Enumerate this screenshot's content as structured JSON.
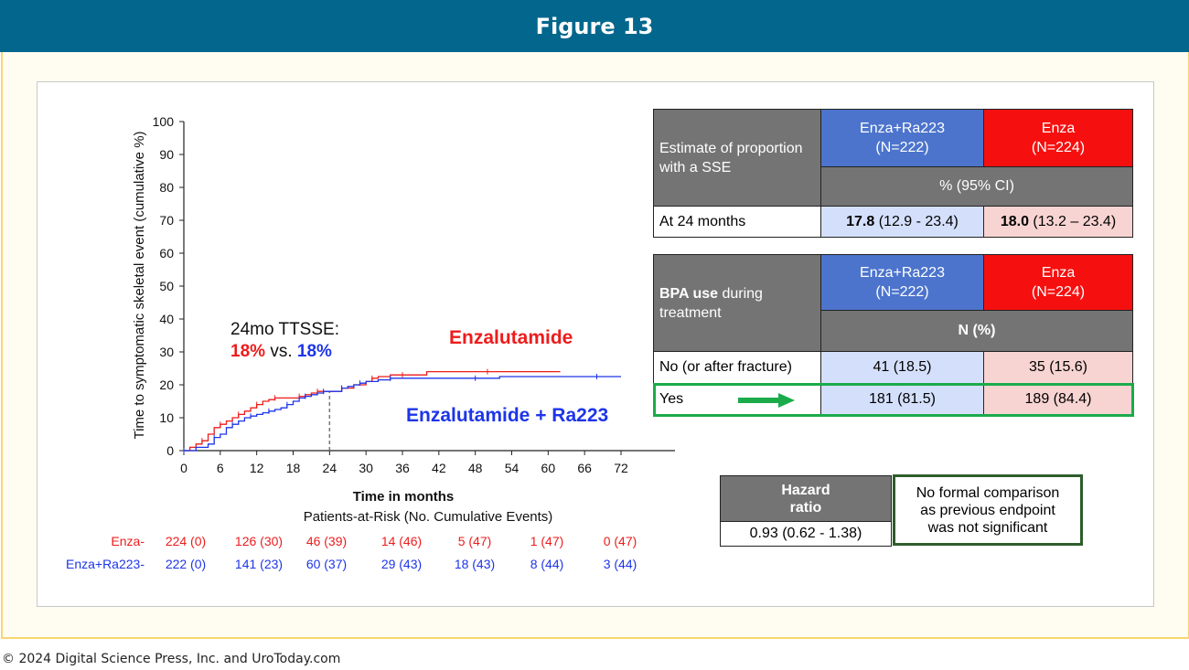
{
  "header": {
    "title": "Figure 13"
  },
  "footer": {
    "copyright": "© 2024 Digital Science Press, Inc. and UroToday.com"
  },
  "chart_data": {
    "type": "line",
    "xlabel": "Time in months",
    "ylabel": "Time to symptomatic skeletal event (cumulative %)",
    "xticks": [
      0,
      6,
      12,
      18,
      24,
      30,
      36,
      42,
      48,
      54,
      60,
      66,
      72
    ],
    "yticks": [
      0,
      10,
      20,
      30,
      40,
      50,
      60,
      70,
      80,
      90,
      100
    ],
    "xlim": [
      0,
      72
    ],
    "ylim": [
      0,
      100
    ],
    "reference_line_x": 24,
    "annotation": {
      "line1": "24mo TTSSE:",
      "red_pct": "18%",
      "vs": "vs.",
      "blue_pct": "18%"
    },
    "series": [
      {
        "name": "Enzalutamide",
        "color": "#ee1c1c",
        "x": [
          0,
          1,
          2,
          3,
          4,
          5,
          6,
          7,
          8,
          9,
          10,
          11,
          12,
          13,
          14,
          15,
          16,
          18,
          19,
          20,
          21,
          22,
          23,
          24,
          26,
          28,
          30,
          31,
          32,
          34,
          36,
          40,
          44,
          50,
          56,
          62
        ],
        "y": [
          0,
          1,
          2,
          3,
          5,
          7,
          8,
          9,
          10,
          11,
          12,
          13,
          14,
          15,
          15.5,
          16,
          16,
          16,
          16.5,
          17,
          17.5,
          18,
          18,
          18,
          19,
          20,
          21,
          22,
          22.5,
          23,
          23,
          24,
          24,
          24,
          24,
          24
        ]
      },
      {
        "name": "Enzalutamide + Ra223",
        "color": "#1d35e8",
        "x": [
          0,
          2,
          4,
          5,
          6,
          7,
          8,
          9,
          10,
          11,
          12,
          13,
          14,
          15,
          16,
          17,
          18,
          19,
          20,
          21,
          22,
          23,
          24,
          25,
          26,
          27,
          28,
          29,
          30,
          32,
          34,
          36,
          42,
          48,
          52,
          60,
          68,
          72
        ],
        "y": [
          0,
          1,
          2,
          4,
          5,
          7,
          8,
          9,
          10,
          10.5,
          11,
          11.5,
          12,
          12.5,
          13,
          14,
          15,
          16,
          16.5,
          17,
          17.5,
          18,
          18,
          18,
          19,
          19.5,
          20,
          20.5,
          21,
          21.5,
          22,
          22,
          22,
          22,
          22.5,
          22.5,
          22.5,
          22.5
        ]
      }
    ],
    "series_labels": {
      "red": "Enzalutamide",
      "blue": "Enzalutamide + Ra223"
    },
    "risk_table": {
      "title": "Patients-at-Risk (No. Cumulative Events)",
      "rows": [
        {
          "label": "Enza-",
          "values": [
            "224 (0)",
            "126 (30)",
            "46 (39)",
            "14 (46)",
            "5 (47)",
            "1 (47)",
            "0 (47)"
          ]
        },
        {
          "label": "Enza+Ra223-",
          "values": [
            "222 (0)",
            "141 (23)",
            "60 (37)",
            "29 (43)",
            "18 (43)",
            "8 (44)",
            "3 (44)"
          ]
        }
      ]
    }
  },
  "table1": {
    "row_header": "Estimate of proportion with a SSE",
    "col1": {
      "line1": "Enza+Ra223",
      "line2": "(N=222)"
    },
    "col2": {
      "line1": "Enza",
      "line2": "(N=224)"
    },
    "subheader": "% (95% CI)",
    "row_label": "At 24 months",
    "v1_bold": "17.8",
    "v1_ci": " (12.9 - 23.4)",
    "v2_bold": "18.0",
    "v2_ci": " (13.2 – 23.4)"
  },
  "table2": {
    "row_header_bold": "BPA use",
    "row_header_rest": " during treatment",
    "col1": {
      "line1": "Enza+Ra223",
      "line2": "(N=222)"
    },
    "col2": {
      "line1": "Enza",
      "line2": "(N=224)"
    },
    "subheader": "N (%)",
    "rows": [
      {
        "label": "No (or after fracture)",
        "v1": "41 (18.5)",
        "v2": "35 (15.6)"
      },
      {
        "label": "Yes",
        "v1": "181 (81.5)",
        "v2": "189 (84.4)"
      }
    ]
  },
  "hazard": {
    "label_line1": "Hazard",
    "label_line2": "ratio",
    "value": "0.93 (0.62 - 1.38)"
  },
  "comparison_note": {
    "line1": "No formal comparison",
    "line2": "as previous endpoint",
    "line3": "was not significant"
  }
}
